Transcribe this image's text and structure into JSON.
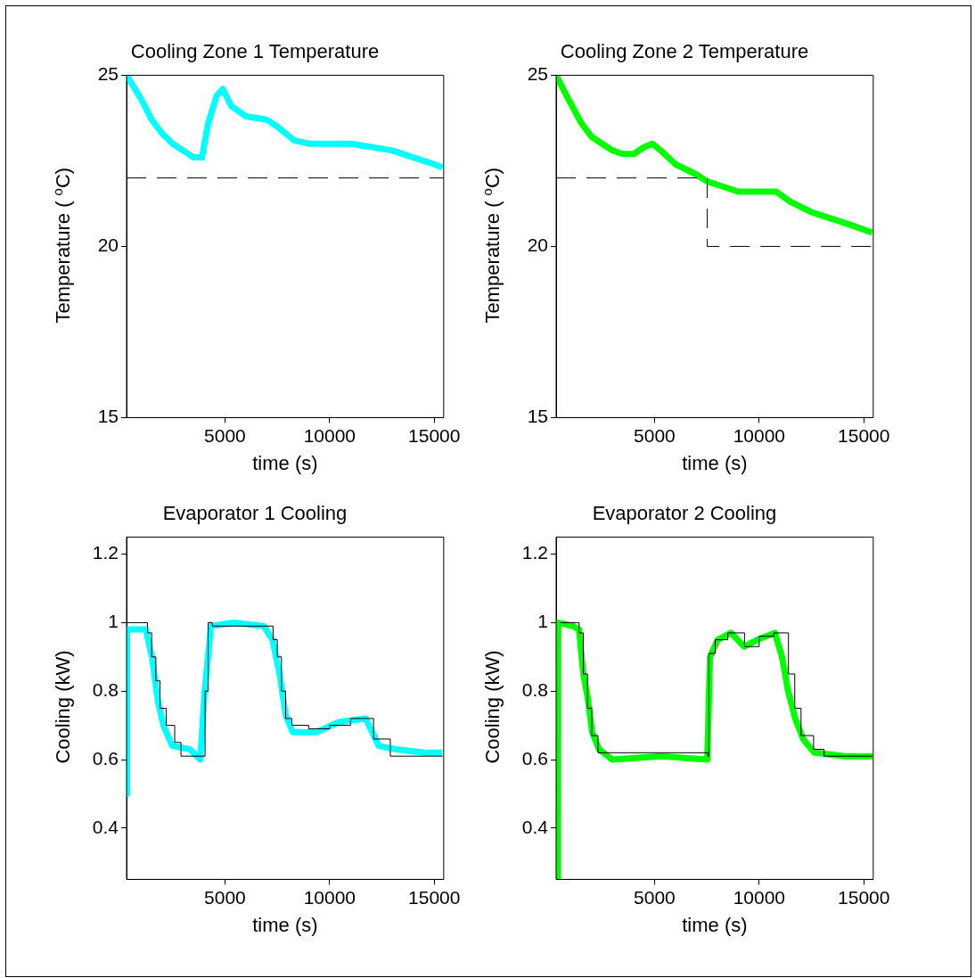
{
  "chart_data": [
    {
      "type": "line",
      "title": "Cooling Zone 1 Temperature",
      "xlabel": "time (s)",
      "ylabel": "Temperature ( $^{o}$C)",
      "xlim": [
        300,
        15450
      ],
      "xticks": [
        5000,
        10000,
        15000
      ],
      "ylim": [
        15,
        25
      ],
      "yticks": [
        15,
        20,
        25
      ],
      "grid": false,
      "legend": false,
      "marker": "none",
      "series": [
        {
          "type": "line",
          "color": "#00ffff",
          "line_style": "solid",
          "x": [
            300,
            1000,
            1500,
            2000,
            2500,
            3000,
            3500,
            3900,
            4200,
            4600,
            4900,
            5300,
            6000,
            7000,
            7500,
            8300,
            9000,
            10000,
            11000,
            12000,
            13000,
            14000,
            15000,
            15400
          ],
          "values": [
            25.0,
            24.3,
            23.7,
            23.3,
            23.0,
            22.8,
            22.6,
            22.6,
            23.6,
            24.4,
            24.6,
            24.1,
            23.8,
            23.7,
            23.5,
            23.1,
            23.0,
            23.0,
            23.0,
            22.9,
            22.8,
            22.6,
            22.4,
            22.3
          ]
        },
        {
          "type": "step",
          "color": "#000000",
          "line_style": "dashed",
          "x": [
            300,
            15450
          ],
          "values": [
            22,
            22
          ]
        }
      ]
    },
    {
      "type": "line",
      "title": "Cooling Zone 2 Temperature",
      "xlabel": "time (s)",
      "ylabel": "Temperature ( $^{o}$C)",
      "xlim": [
        300,
        15450
      ],
      "xticks": [
        5000,
        10000,
        15000
      ],
      "ylim": [
        15,
        25
      ],
      "yticks": [
        15,
        20,
        25
      ],
      "grid": false,
      "legend": false,
      "marker": "none",
      "series": [
        {
          "type": "line",
          "color": "#00ff00",
          "line_style": "solid",
          "x": [
            300,
            800,
            1500,
            2000,
            2500,
            3000,
            3500,
            4000,
            4500,
            4900,
            5300,
            6000,
            7000,
            7500,
            8000,
            9000,
            10000,
            10800,
            11500,
            12500,
            13500,
            14500,
            15400
          ],
          "values": [
            25.0,
            24.4,
            23.6,
            23.2,
            23.0,
            22.8,
            22.7,
            22.7,
            22.9,
            23.0,
            22.8,
            22.4,
            22.1,
            21.9,
            21.8,
            21.6,
            21.6,
            21.6,
            21.3,
            21.0,
            20.8,
            20.6,
            20.4
          ]
        },
        {
          "type": "step",
          "color": "#000000",
          "line_style": "dashed",
          "x": [
            300,
            7520,
            15450
          ],
          "values": [
            22,
            20,
            20
          ]
        }
      ]
    },
    {
      "type": "line",
      "title": "Evaporator 1 Cooling",
      "xlabel": "time (s)",
      "ylabel": "Cooling (kW)",
      "xlim": [
        300,
        15450
      ],
      "xticks": [
        5000,
        10000,
        15000
      ],
      "ylim": [
        0.25,
        1.25
      ],
      "yticks": [
        0.4,
        0.6,
        0.8,
        1,
        1.2
      ],
      "grid": false,
      "legend": false,
      "marker": "none",
      "series": [
        {
          "type": "line",
          "color": "#00ffff",
          "line_style": "solid",
          "x": [
            300,
            330,
            1220,
            1510,
            1800,
            2060,
            2480,
            3320,
            3820,
            4030,
            4330,
            5420,
            6850,
            7270,
            7610,
            7900,
            8240,
            9370,
            10460,
            11720,
            12350,
            13150,
            14540,
            15380
          ],
          "values": [
            0.5,
            0.98,
            0.98,
            0.9,
            0.77,
            0.7,
            0.64,
            0.63,
            0.6,
            0.8,
            0.99,
            1.0,
            0.99,
            0.95,
            0.85,
            0.73,
            0.68,
            0.68,
            0.71,
            0.72,
            0.64,
            0.63,
            0.62,
            0.62
          ]
        },
        {
          "type": "step",
          "color": "#000000",
          "line_style": "solid",
          "x": [
            300,
            1300,
            1500,
            1700,
            1900,
            2200,
            2600,
            2900,
            3500,
            4050,
            4200,
            4400,
            7000,
            7300,
            7500,
            7700,
            7900,
            8200,
            9000,
            10000,
            11000,
            12100,
            12900,
            15400
          ],
          "values": [
            1.0,
            0.97,
            0.9,
            0.83,
            0.75,
            0.7,
            0.65,
            0.61,
            0.61,
            0.8,
            1.0,
            0.99,
            0.99,
            0.95,
            0.9,
            0.8,
            0.72,
            0.7,
            0.69,
            0.7,
            0.72,
            0.66,
            0.61,
            0.61
          ]
        }
      ]
    },
    {
      "type": "line",
      "title": "Evaporator 2 Cooling",
      "xlabel": "time (s)",
      "ylabel": "Cooling (kW)",
      "xlim": [
        300,
        15450
      ],
      "xticks": [
        5000,
        10000,
        15000
      ],
      "ylim": [
        0.25,
        1.25
      ],
      "yticks": [
        0.4,
        0.6,
        0.8,
        1,
        1.2
      ],
      "grid": false,
      "legend": false,
      "marker": "none",
      "series": [
        {
          "type": "line",
          "color": "#00ff00",
          "line_style": "solid",
          "x": [
            380,
            400,
            1090,
            1390,
            1600,
            1810,
            2020,
            2350,
            2980,
            5300,
            7520,
            7650,
            8020,
            8650,
            9280,
            9910,
            10750,
            11090,
            11380,
            11720,
            12100,
            12640,
            14110,
            15420
          ],
          "values": [
            0.25,
            1.0,
            0.99,
            0.98,
            0.85,
            0.78,
            0.68,
            0.63,
            0.6,
            0.61,
            0.6,
            0.9,
            0.95,
            0.97,
            0.93,
            0.95,
            0.97,
            0.9,
            0.8,
            0.72,
            0.66,
            0.62,
            0.61,
            0.61
          ]
        },
        {
          "type": "step",
          "color": "#000000",
          "line_style": "solid",
          "x": [
            500,
            1300,
            1400,
            1600,
            1800,
            2000,
            2300,
            7550,
            7600,
            7900,
            8500,
            9300,
            10000,
            10700,
            11400,
            11700,
            12000,
            12600,
            13100,
            15400
          ],
          "values": [
            1.0,
            1.0,
            0.97,
            0.85,
            0.75,
            0.67,
            0.62,
            0.61,
            0.91,
            0.95,
            0.97,
            0.93,
            0.96,
            0.97,
            0.85,
            0.75,
            0.67,
            0.63,
            0.61,
            0.61
          ]
        }
      ]
    }
  ]
}
